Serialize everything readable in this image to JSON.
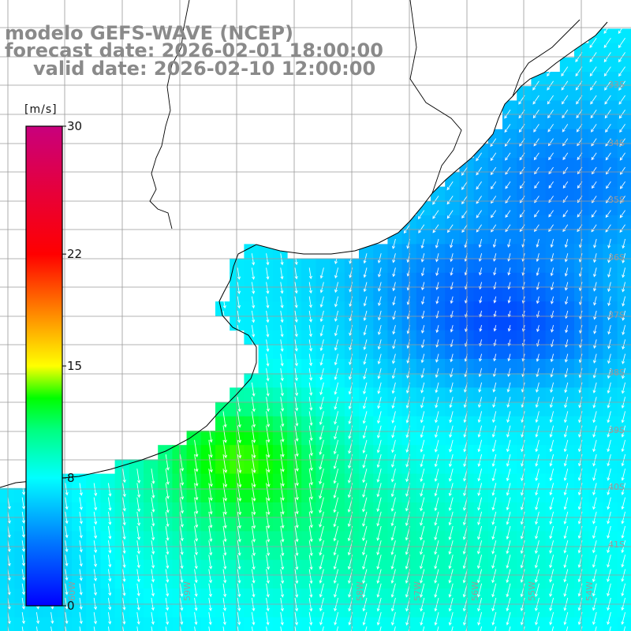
{
  "title": {
    "line1": "modelo GEFS-WAVE (NCEP)",
    "line2": "forecast date: 2026-02-01 18:00:00",
    "line3": "valid date: 2026-02-10 12:00:00"
  },
  "colorbar": {
    "unit": "[m/s]",
    "ticks": [
      {
        "value": 0,
        "label": "0"
      },
      {
        "value": 8,
        "label": "8"
      },
      {
        "value": 15,
        "label": "15"
      },
      {
        "value": 22,
        "label": "22"
      },
      {
        "value": 30,
        "label": "30"
      }
    ],
    "range": [
      0,
      30
    ],
    "stops": [
      {
        "value": 0,
        "color": "#0000ff"
      },
      {
        "value": 4,
        "color": "#0078ff"
      },
      {
        "value": 8,
        "color": "#00ffff"
      },
      {
        "value": 11,
        "color": "#00ff7f"
      },
      {
        "value": 13,
        "color": "#00ff00"
      },
      {
        "value": 15,
        "color": "#ffff00"
      },
      {
        "value": 18.5,
        "color": "#ff8000"
      },
      {
        "value": 22,
        "color": "#ff0000"
      },
      {
        "value": 26,
        "color": "#e6003c"
      },
      {
        "value": 30,
        "color": "#c8007d"
      }
    ]
  },
  "lat_labels": [
    "33S",
    "34S",
    "35S",
    "36S",
    "37S",
    "38S",
    "39S",
    "40S",
    "41S"
  ],
  "lon_labels": [
    "60W",
    "59W",
    "58W",
    "57W",
    "56W",
    "55W",
    "54W"
  ],
  "colors": {
    "grid": "#9a9a9a",
    "coast": "#000000",
    "land": "#ffffff",
    "arrow": "#ffffff",
    "title": "#8a8a8a"
  },
  "field": {
    "description": "wind speed [m/s] over ocean",
    "regions": [
      {
        "name": "strong-core",
        "speed": 12.5
      },
      {
        "name": "east-weak",
        "speed": 2.5
      }
    ]
  }
}
